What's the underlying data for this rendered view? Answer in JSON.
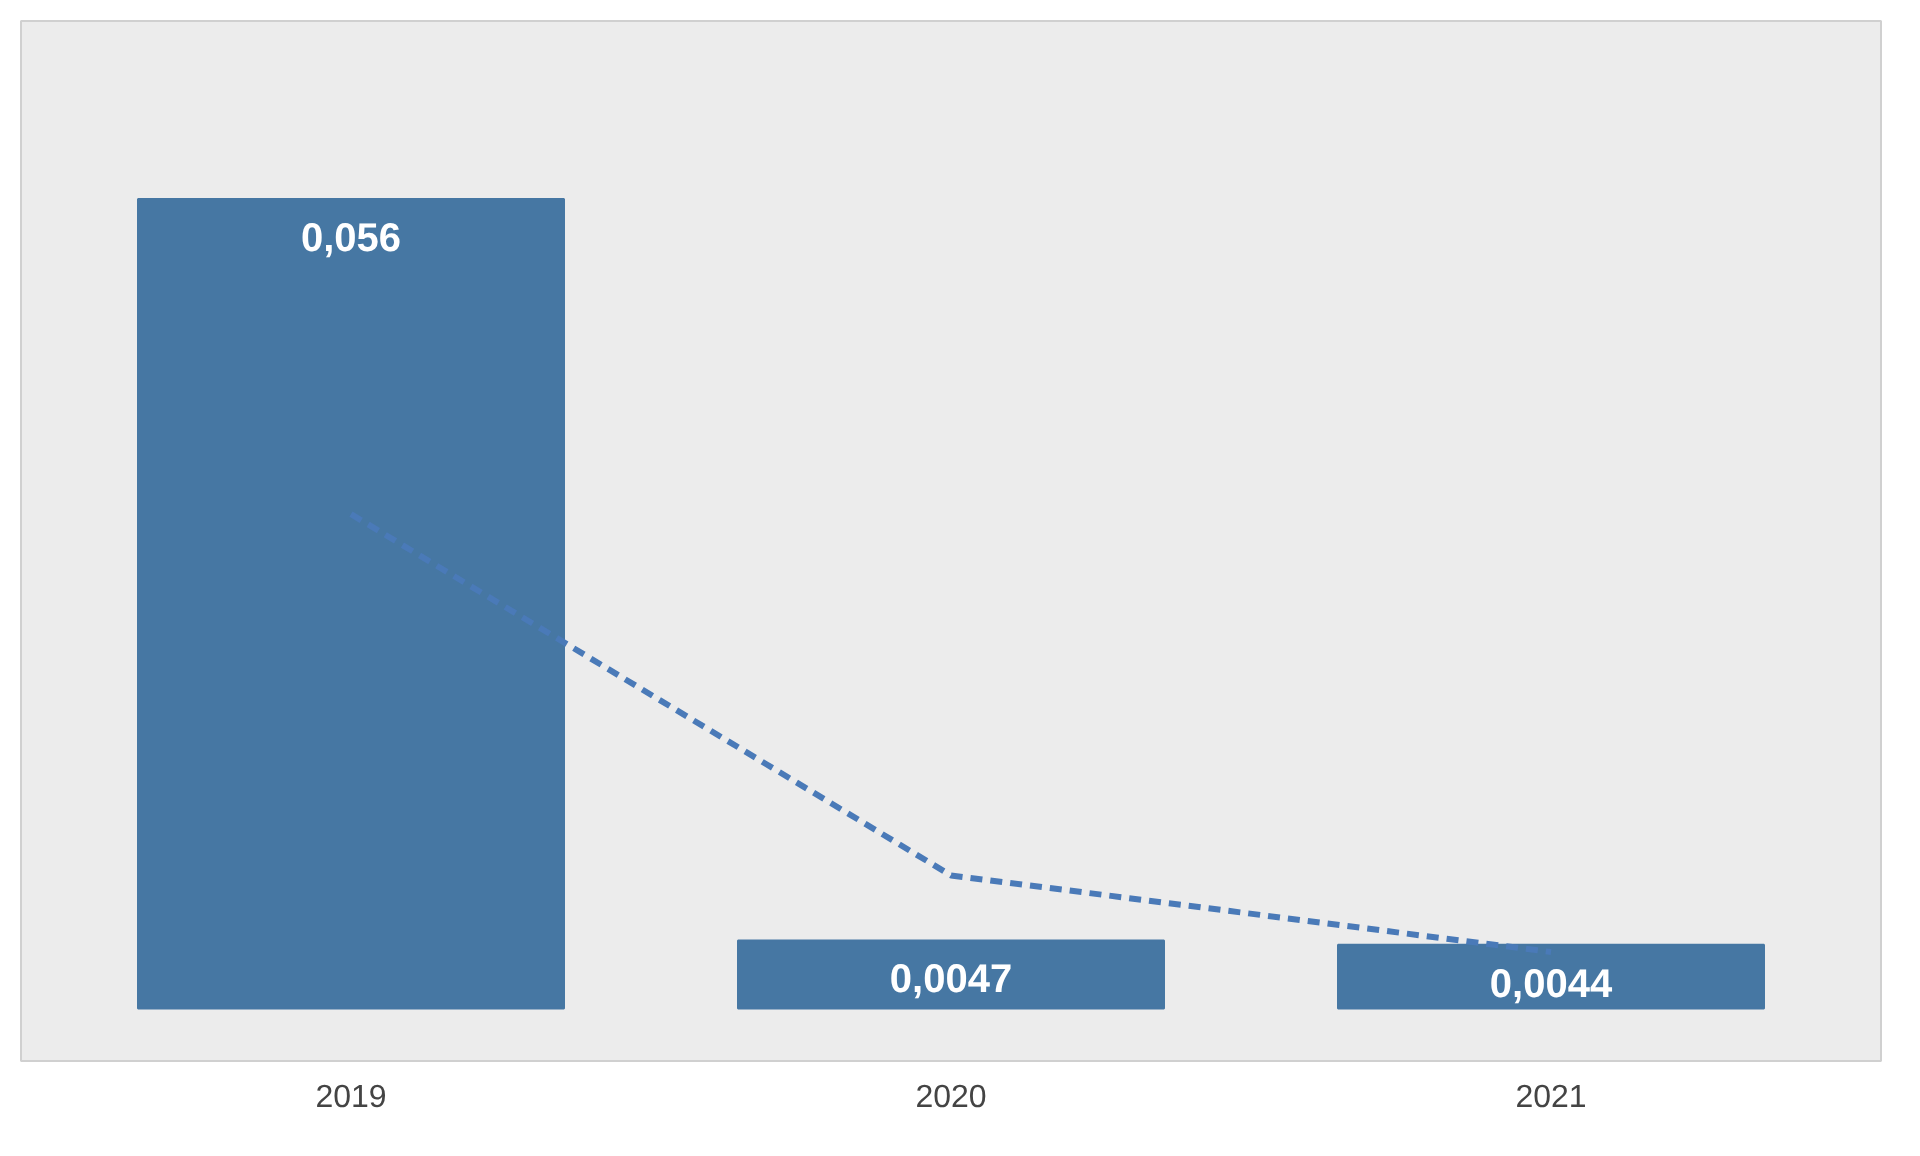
{
  "chart_data": {
    "type": "bar",
    "categories": [
      "2019",
      "2020",
      "2021"
    ],
    "grid": false,
    "series": [
      {
        "color": "#4677a3",
        "values": [
          0.056,
          0.0047,
          0.0044
        ],
        "value_labels": [
          "0,056",
          "0,0047",
          "0,0044"
        ]
      },
      {
        "type": "line",
        "color": "#4a7ab8",
        "values": [
          0.0342,
          0.0092,
          0.0039
        ],
        "line_style": "dashed",
        "marker": "none"
      }
    ]
  }
}
